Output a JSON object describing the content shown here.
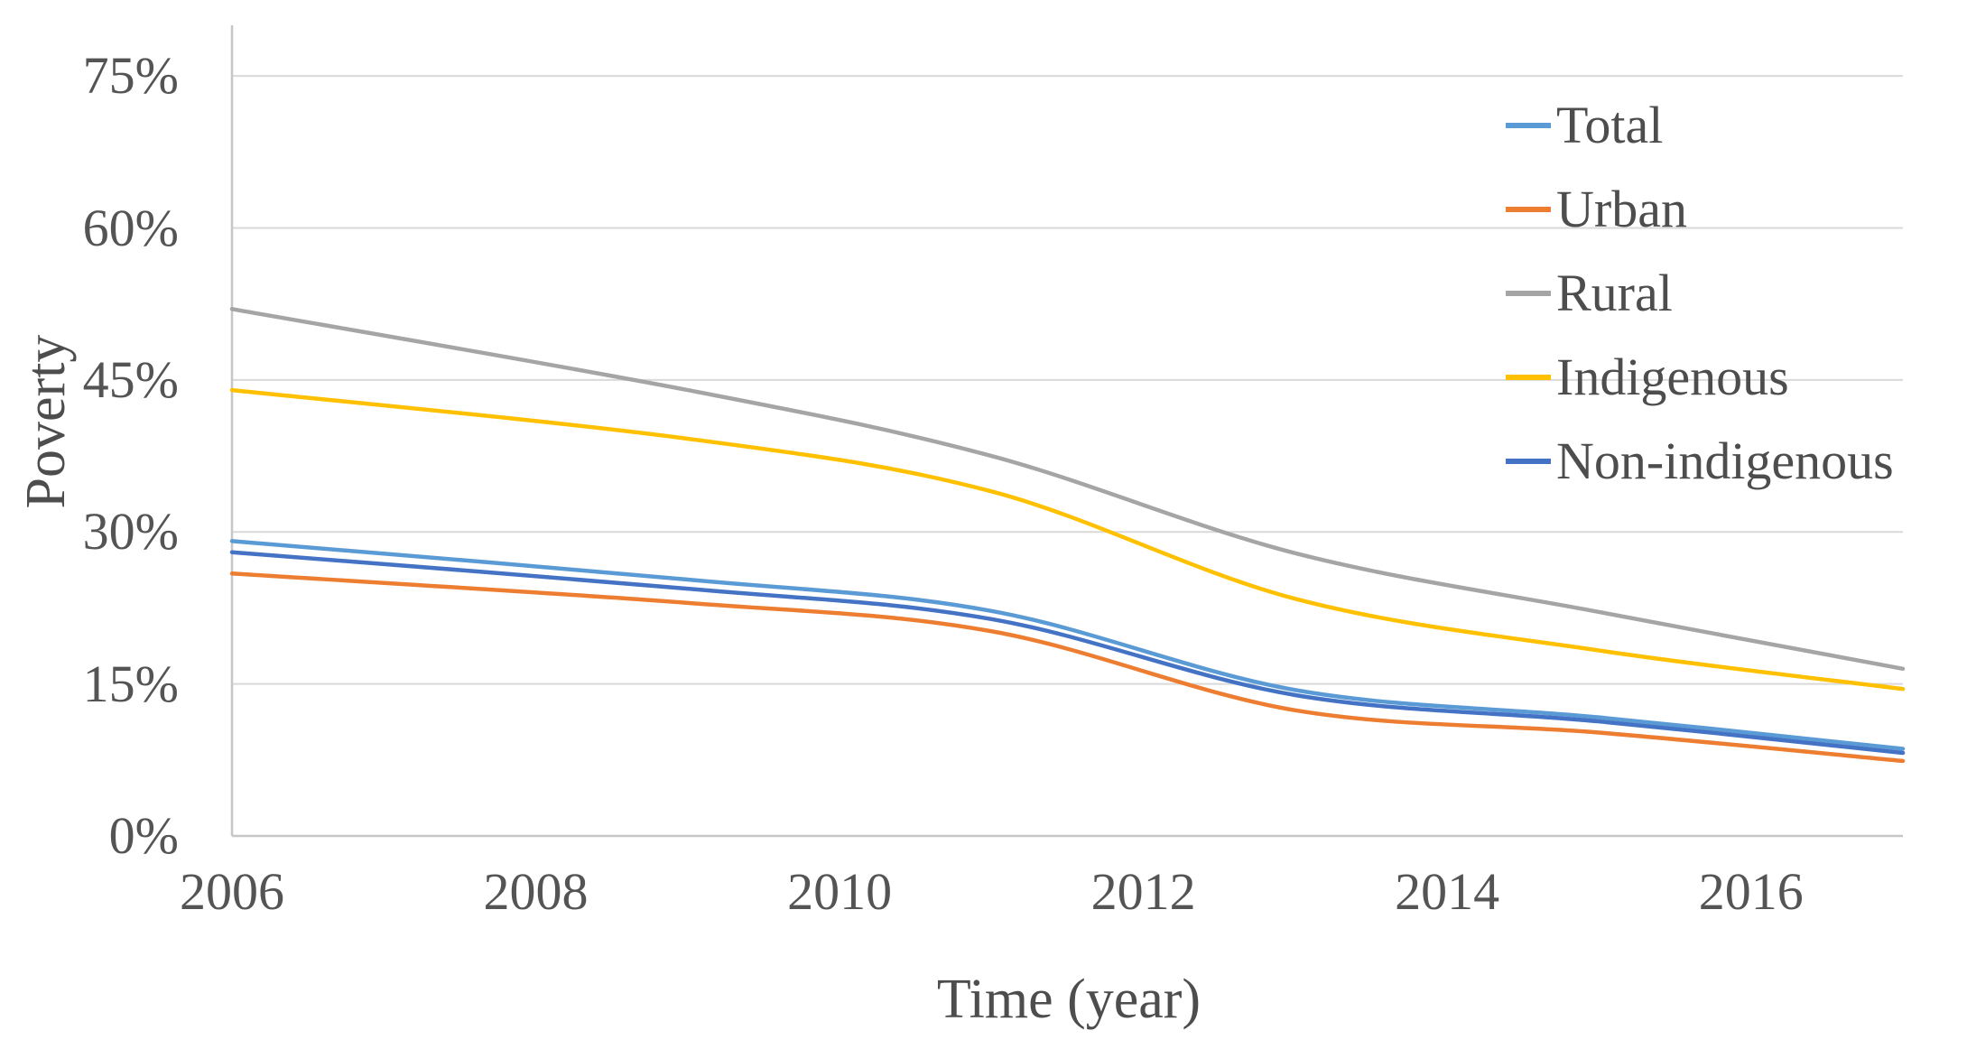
{
  "chart_data": {
    "type": "line",
    "title": "",
    "xlabel": "Time (year)",
    "ylabel": "Poverty",
    "x": [
      2006,
      2009,
      2011,
      2013,
      2015,
      2017
    ],
    "series": [
      {
        "name": "Total",
        "color": "#5B9BD5",
        "values": [
          29.1,
          25.3,
          22.2,
          14.4,
          11.7,
          8.6
        ]
      },
      {
        "name": "Urban",
        "color": "#ED7D31",
        "values": [
          25.9,
          23.0,
          20.2,
          12.4,
          10.2,
          7.4
        ]
      },
      {
        "name": "Rural",
        "color": "#A5A5A5",
        "values": [
          52.0,
          44.0,
          37.5,
          27.9,
          22.1,
          16.5
        ]
      },
      {
        "name": "Indigenous",
        "color": "#FFC000",
        "values": [
          44.0,
          39.2,
          34.0,
          23.4,
          18.3,
          14.5
        ]
      },
      {
        "name": "Non-indigenous",
        "color": "#4472C4",
        "values": [
          28.0,
          24.4,
          21.4,
          13.9,
          11.3,
          8.2
        ]
      }
    ],
    "x_ticks": [
      {
        "label": "2006",
        "value": 2006
      },
      {
        "label": "2008",
        "value": 2008
      },
      {
        "label": "2010",
        "value": 2010
      },
      {
        "label": "2012",
        "value": 2012
      },
      {
        "label": "2014",
        "value": 2014
      },
      {
        "label": "2016",
        "value": 2016
      }
    ],
    "y_ticks": [
      {
        "label": "0%",
        "value": 0
      },
      {
        "label": "15%",
        "value": 15
      },
      {
        "label": "30%",
        "value": 30
      },
      {
        "label": "45%",
        "value": 45
      },
      {
        "label": "60%",
        "value": 60
      },
      {
        "label": "75%",
        "value": 75
      }
    ],
    "xlim": [
      2006,
      2017
    ],
    "ylim": [
      0,
      80
    ],
    "grid": true,
    "smooth": true,
    "legend_position": "top-right",
    "colors": {
      "gridline": "#D9D9D9",
      "axis_line": "#C6C6C6",
      "tick_text": "#545454",
      "label_text": "#4d4d4d"
    }
  }
}
